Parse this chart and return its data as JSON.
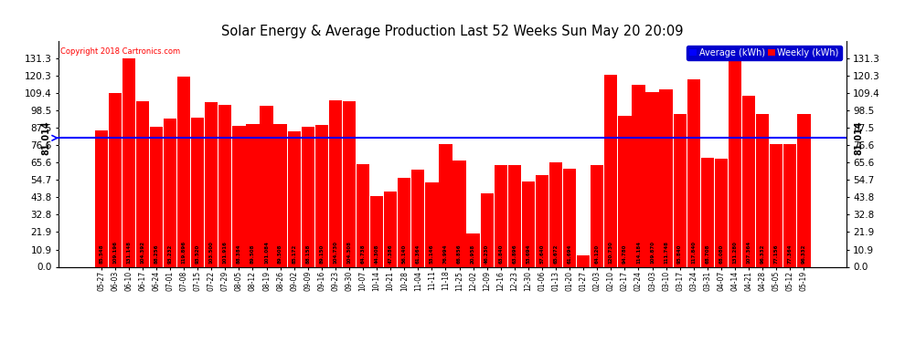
{
  "title": "Solar Energy & Average Production Last 52 Weeks Sun May 20 20:09",
  "copyright": "Copyright 2018 Cartronics.com",
  "average_label": "81.014",
  "average_value": 81.014,
  "bar_color": "#ff0000",
  "average_line_color": "#0000ff",
  "background_color": "#ffffff",
  "grid_color": "#888888",
  "ylim": [
    0,
    142
  ],
  "yticks": [
    0.0,
    10.9,
    21.9,
    32.8,
    43.8,
    54.7,
    65.6,
    76.6,
    87.5,
    98.5,
    109.4,
    120.3,
    131.3
  ],
  "categories": [
    "05-27",
    "06-03",
    "06-10",
    "06-17",
    "06-24",
    "07-01",
    "07-08",
    "07-15",
    "07-22",
    "07-29",
    "08-05",
    "08-12",
    "08-19",
    "08-26",
    "09-02",
    "09-09",
    "09-16",
    "09-23",
    "09-30",
    "10-07",
    "10-14",
    "10-21",
    "10-28",
    "11-04",
    "11-11",
    "11-18",
    "11-25",
    "12-02",
    "12-09",
    "12-16",
    "12-23",
    "12-30",
    "01-06",
    "01-13",
    "01-20",
    "01-27",
    "02-03",
    "02-10",
    "02-17",
    "02-24",
    "03-03",
    "03-10",
    "03-17",
    "03-24",
    "03-31",
    "04-07",
    "04-14",
    "04-21",
    "04-28",
    "05-05",
    "05-12",
    "05-19"
  ],
  "values": [
    85.548,
    109.196,
    131.148,
    104.392,
    88.256,
    93.232,
    119.896,
    93.52,
    103.5,
    101.916,
    88.384,
    89.508,
    101.084,
    89.508,
    85.172,
    88.158,
    89.15,
    104.73,
    104.308,
    64.738,
    44.308,
    47.386,
    56.14,
    61.364,
    53.146,
    76.994,
    66.856,
    20.958,
    46.23,
    63.84,
    63.896,
    53.694,
    57.64,
    65.672,
    61.694,
    7.26,
    64.12,
    120.73,
    94.78,
    114.184,
    109.87,
    111.748,
    95.84,
    117.84,
    68.708,
    68.08,
    131.28,
    107.364,
    96.332,
    77.156,
    77.364,
    96.332
  ],
  "bar_values_display": [
    "85.548",
    "109.196",
    "131.148",
    "104.392",
    "88.256",
    "93.232",
    "119.896",
    "93.520",
    "103.500",
    "101.916",
    "88.384",
    "89.508",
    "101.084",
    "89.508",
    "85.172",
    "88.158",
    "89.150",
    "104.730",
    "104.308",
    "64.738",
    "44.308",
    "47.386",
    "56.140",
    "61.364",
    "53.146",
    "76.994",
    "66.856",
    "20.958",
    "46.230",
    "63.840",
    "63.896",
    "53.694",
    "57.640",
    "65.672",
    "61.694",
    "7.26",
    "64.120",
    "120.730",
    "94.780",
    "114.184",
    "109.870",
    "111.748",
    "95.840",
    "117.840",
    "68.708",
    "68.080",
    "131.280",
    "107.364",
    "96.332",
    "77.156",
    "77.364",
    "96.332"
  ],
  "legend_avg_color": "#0000ff",
  "legend_weekly_color": "#ff0000",
  "legend_avg_text": "Average (kWh)",
  "legend_weekly_text": "Weekly (kWh)"
}
